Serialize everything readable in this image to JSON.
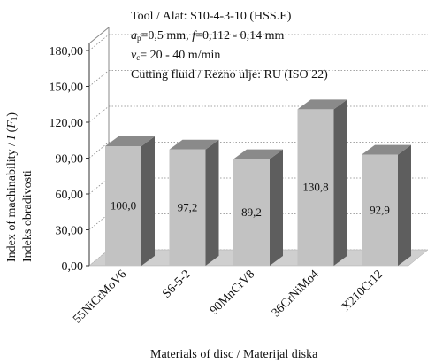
{
  "chart_data": {
    "type": "bar",
    "categories": [
      "55NiCrMoV6",
      "S6-5-2",
      "90MnCrV8",
      "36CrNiMo4",
      "X210Cr12"
    ],
    "values": [
      100.0,
      97.2,
      89.2,
      130.8,
      92.9
    ],
    "value_labels": [
      "100,0",
      "97,2",
      "89,2",
      "130,8",
      "92,9"
    ],
    "xlabel": "Materials of disc / Materijal diska",
    "ylabel_line1_pre": "Index of machinability / ",
    "ylabel_line1_I": "I",
    "ylabel_line1_open": " (",
    "ylabel_line1_F": "F",
    "ylabel_line1_sub": "1",
    "ylabel_line1_close": ")",
    "ylabel_line2": "Indeks obradivosti",
    "ylim": [
      0,
      180
    ],
    "yticks": [
      "0,00",
      "30,00",
      "60,00",
      "90,00",
      "120,00",
      "150,00",
      "180,00"
    ],
    "grid": true,
    "three_d": true,
    "colors": {
      "bar_front": "#c2c2c2",
      "bar_top": "#8a8a8a",
      "bar_side": "#5e5e5e",
      "floor": "#cfcfcf",
      "grid": "#888888"
    },
    "annotation": {
      "line1": "Tool / Alat: S10-4-3-10 (HSS.E)",
      "line2_a": "a",
      "line2_asub": "p",
      "line2_mid": "=0,5 mm, ",
      "line2_f": "f",
      "line2_end": "=0,112 -  0,14 mm",
      "line3_v": "v",
      "line3_vsub": "c",
      "line3_end": "= 20 - 40 m/min",
      "line4": "Cutting  fluid / Rezno ulje: RU (ISO 22)"
    }
  }
}
